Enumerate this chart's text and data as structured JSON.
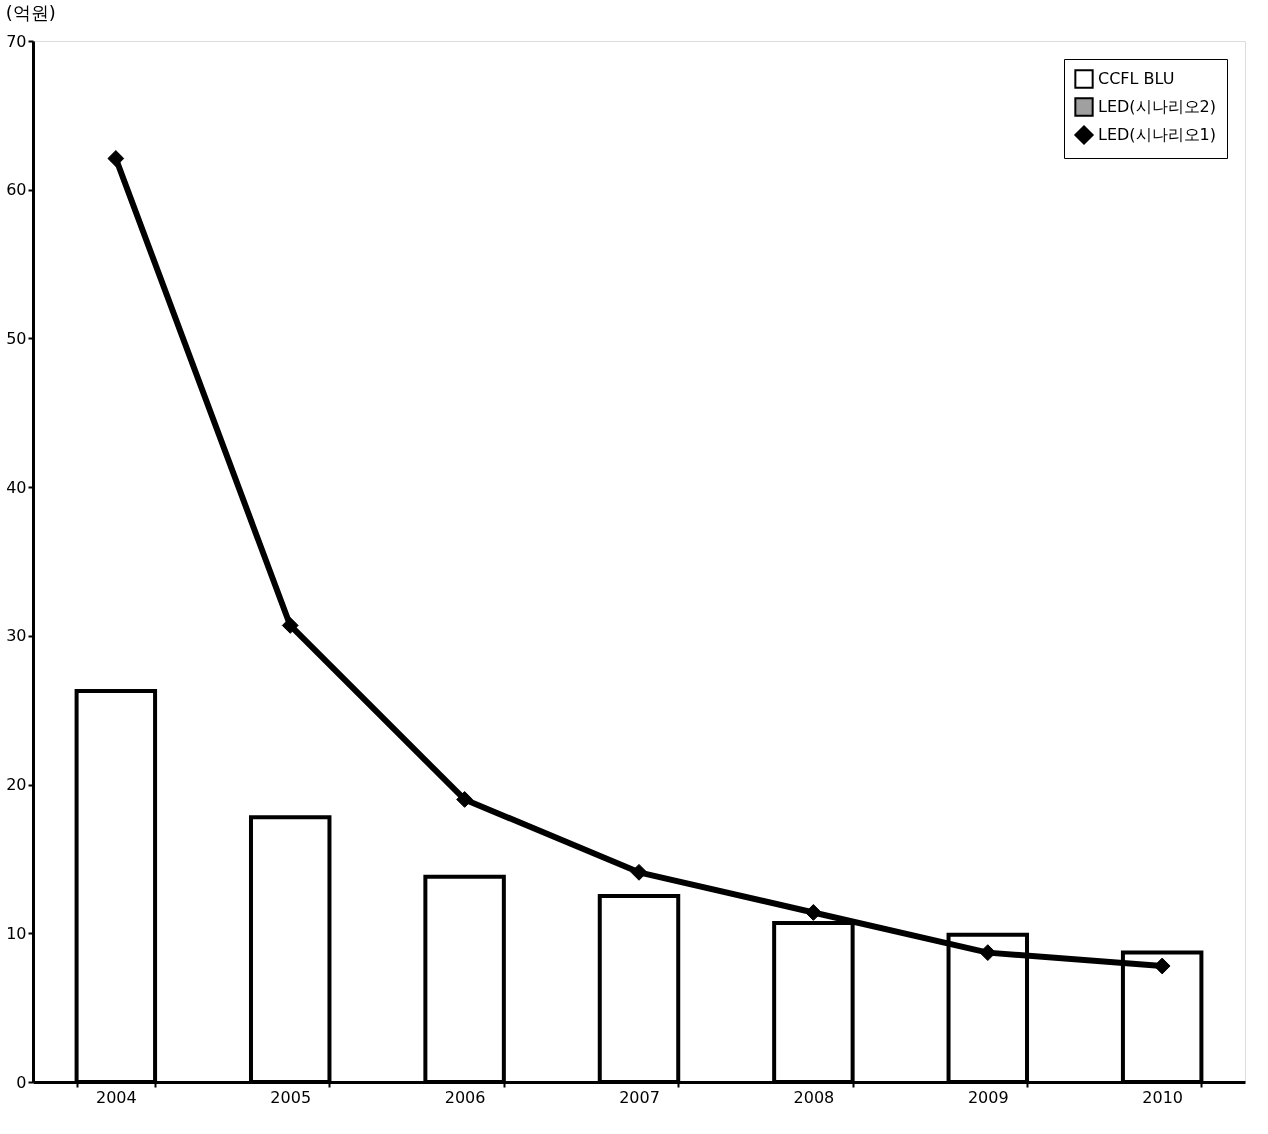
{
  "chart_data": {
    "type": "bar",
    "ylabel": "(억원)",
    "categories": [
      "2004",
      "2005",
      "2006",
      "2007",
      "2008",
      "2009",
      "2010"
    ],
    "series": [
      {
        "name": "CCFL BLU",
        "color": "#ffffff",
        "values": [
          26.3,
          17.8,
          13.8,
          12.5,
          10.7,
          9.9,
          8.7
        ]
      },
      {
        "name": "LED(시나리오2)",
        "color": "#a0a0a0",
        "values": [
          null,
          null,
          null,
          null,
          null,
          null,
          null
        ]
      },
      {
        "name": "LED(시나리오1)",
        "type": "line",
        "color": "#000000",
        "marker": "diamond",
        "values": [
          62.1,
          30.7,
          19.0,
          14.1,
          11.4,
          8.7,
          7.8
        ]
      }
    ],
    "ylim": [
      0,
      70
    ],
    "yticks": [
      0,
      10,
      20,
      30,
      40,
      50,
      60,
      70
    ],
    "grid": false,
    "legend": "top right"
  }
}
